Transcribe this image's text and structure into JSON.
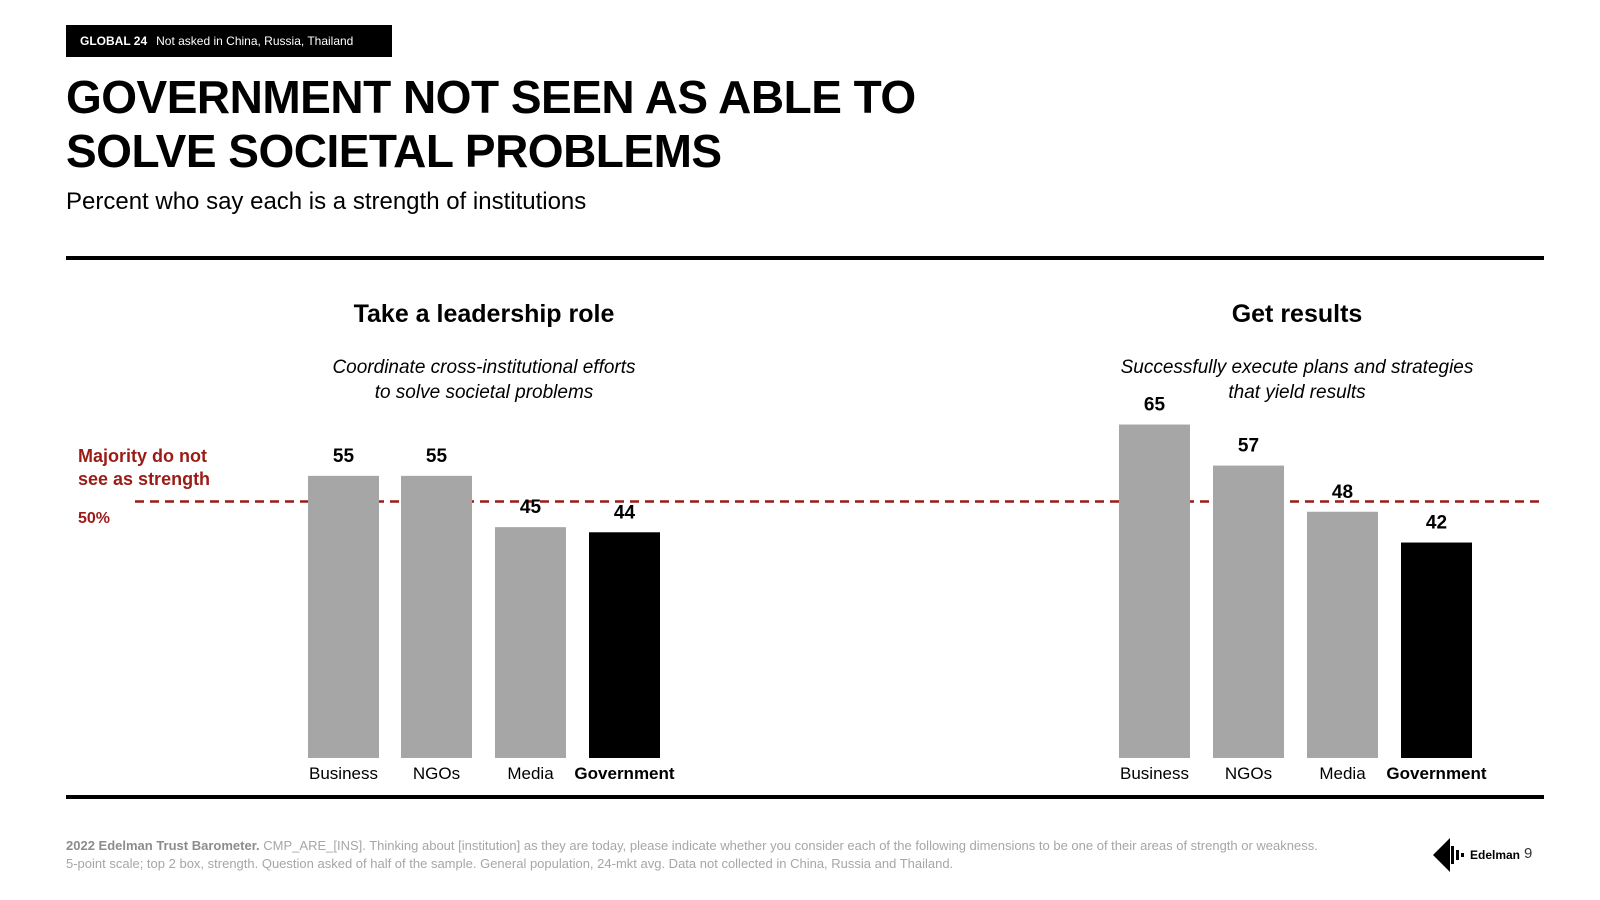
{
  "header": {
    "tag_bold": "GLOBAL 24",
    "tag_note": "Not asked in China, Russia, Thailand",
    "title_line1": "GOVERNMENT NOT SEEN AS ABLE TO",
    "title_line2": "SOLVE SOCIETAL PROBLEMS",
    "subtitle": "Percent who say each is a strength of institutions"
  },
  "annotation": {
    "majority_line1": "Majority do not",
    "majority_line2": "see as strength",
    "ref_label": "50%"
  },
  "colors": {
    "gray_bar": "#a6a6a6",
    "highlight_bar": "#000000",
    "reference_line": "#9b1c16"
  },
  "chart_data": [
    {
      "type": "bar",
      "title": "Take a leadership role",
      "description_line1": "Coordinate cross-institutional efforts",
      "description_line2": "to solve societal problems",
      "categories": [
        "Business",
        "NGOs",
        "Media",
        "Government"
      ],
      "values": [
        55,
        55,
        45,
        44
      ],
      "highlight": "Government",
      "reference_line": 50,
      "ylim": [
        0,
        100
      ]
    },
    {
      "type": "bar",
      "title": "Get results",
      "description_line1": "Successfully execute plans and strategies",
      "description_line2": "that yield results",
      "categories": [
        "Business",
        "NGOs",
        "Media",
        "Government"
      ],
      "values": [
        65,
        57,
        48,
        42
      ],
      "highlight": "Government",
      "reference_line": 50,
      "ylim": [
        0,
        100
      ]
    }
  ],
  "footer": {
    "source_bold": "2022 Edelman Trust Barometer.",
    "source_text": "CMP_ARE_[INS]. Thinking about [institution] as they are today, please indicate whether you consider each of the following dimensions to be one of their areas of strength or weakness. 5-point scale; top 2 box, strength. Question asked of half of the sample. General population, 24-mkt avg. Data not collected in China, Russia and Thailand.",
    "logo_text": "Edelman",
    "page_number": "9"
  }
}
